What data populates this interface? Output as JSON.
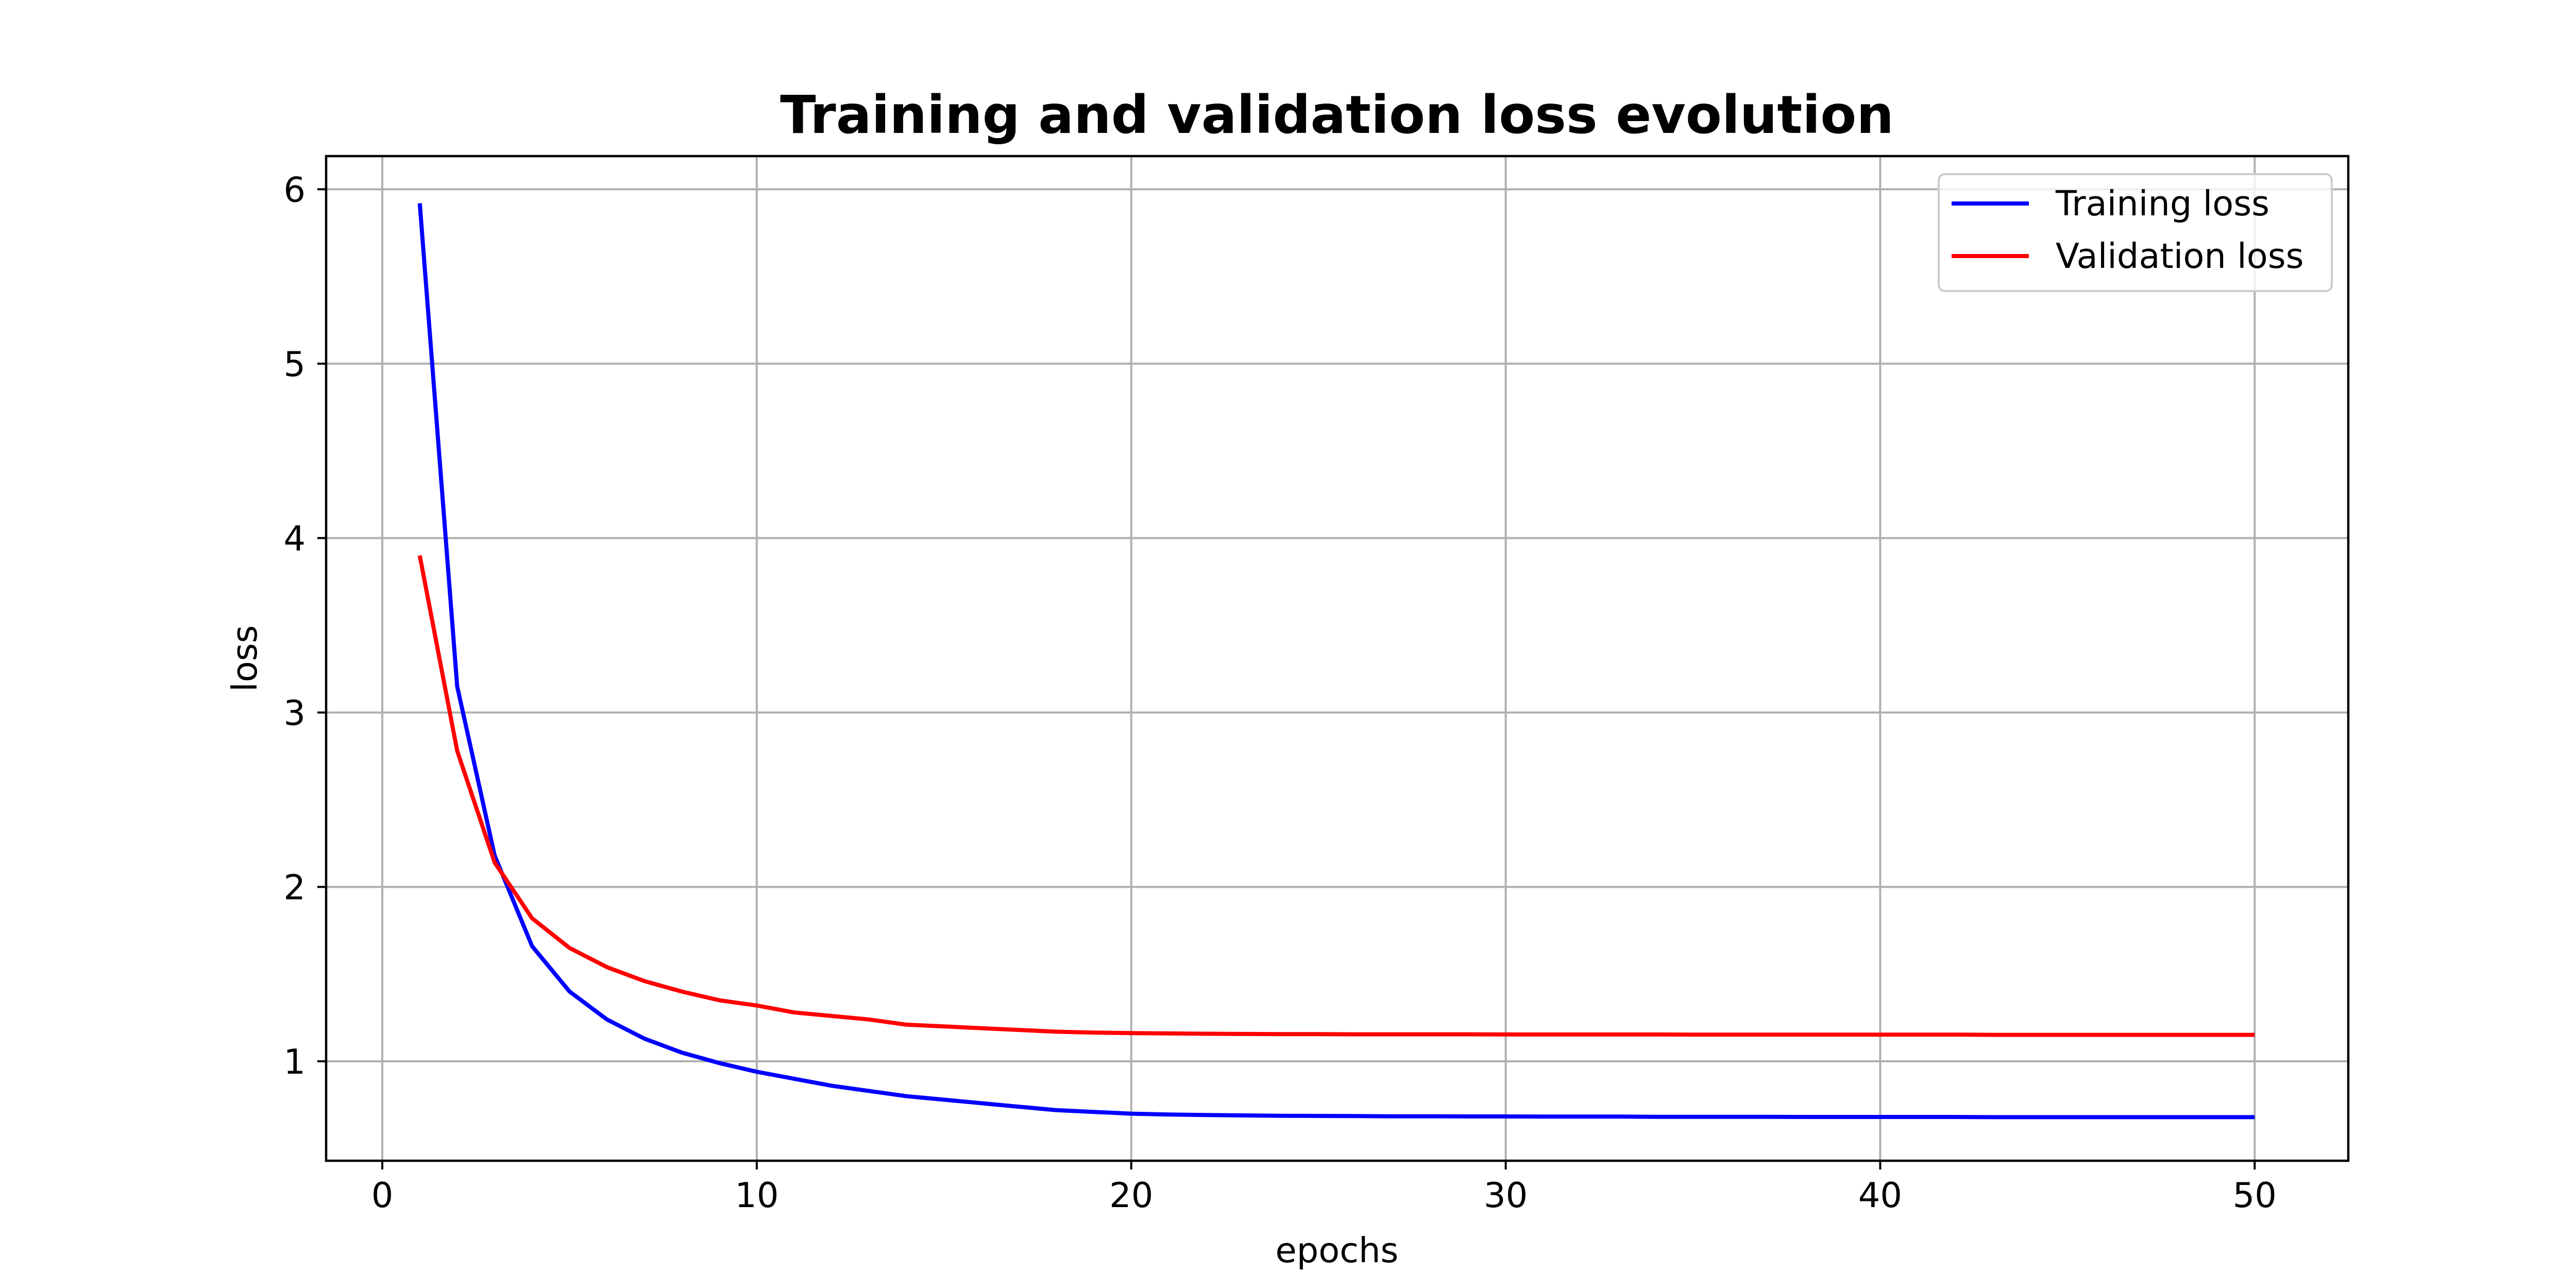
{
  "chart_data": {
    "type": "line",
    "title": "Training and validation loss evolution",
    "xlabel": "epochs",
    "ylabel": "loss",
    "xlim": [
      -1.5,
      52.5
    ],
    "ylim": [
      0.43,
      6.19
    ],
    "xticks": [
      0,
      10,
      20,
      30,
      40,
      50
    ],
    "yticks": [
      1,
      2,
      3,
      4,
      5,
      6
    ],
    "grid": true,
    "legend_position": "top-right",
    "x": [
      1,
      2,
      3,
      4,
      5,
      6,
      7,
      8,
      9,
      10,
      11,
      12,
      13,
      14,
      15,
      16,
      17,
      18,
      19,
      20,
      21,
      22,
      23,
      24,
      25,
      26,
      27,
      28,
      29,
      30,
      31,
      32,
      33,
      34,
      35,
      36,
      37,
      38,
      39,
      40,
      41,
      42,
      43,
      44,
      45,
      46,
      47,
      48,
      49,
      50
    ],
    "series": [
      {
        "name": "Training loss",
        "color": "#0000ff",
        "values": [
          5.92,
          3.15,
          2.18,
          1.66,
          1.4,
          1.24,
          1.13,
          1.05,
          0.99,
          0.94,
          0.9,
          0.86,
          0.83,
          0.8,
          0.78,
          0.76,
          0.74,
          0.72,
          0.71,
          0.7,
          0.695,
          0.692,
          0.69,
          0.688,
          0.687,
          0.686,
          0.685,
          0.685,
          0.684,
          0.684,
          0.683,
          0.683,
          0.683,
          0.682,
          0.682,
          0.682,
          0.682,
          0.681,
          0.681,
          0.681,
          0.681,
          0.681,
          0.68,
          0.68,
          0.68,
          0.68,
          0.68,
          0.68,
          0.68,
          0.68
        ]
      },
      {
        "name": "Validation loss",
        "color": "#ff0000",
        "values": [
          3.9,
          2.78,
          2.14,
          1.82,
          1.65,
          1.54,
          1.46,
          1.4,
          1.35,
          1.32,
          1.28,
          1.26,
          1.24,
          1.21,
          1.2,
          1.19,
          1.18,
          1.17,
          1.165,
          1.162,
          1.16,
          1.158,
          1.157,
          1.156,
          1.156,
          1.155,
          1.155,
          1.155,
          1.155,
          1.154,
          1.154,
          1.154,
          1.154,
          1.154,
          1.153,
          1.153,
          1.153,
          1.153,
          1.153,
          1.153,
          1.153,
          1.153,
          1.152,
          1.152,
          1.152,
          1.152,
          1.152,
          1.152,
          1.152,
          1.152
        ]
      }
    ]
  }
}
